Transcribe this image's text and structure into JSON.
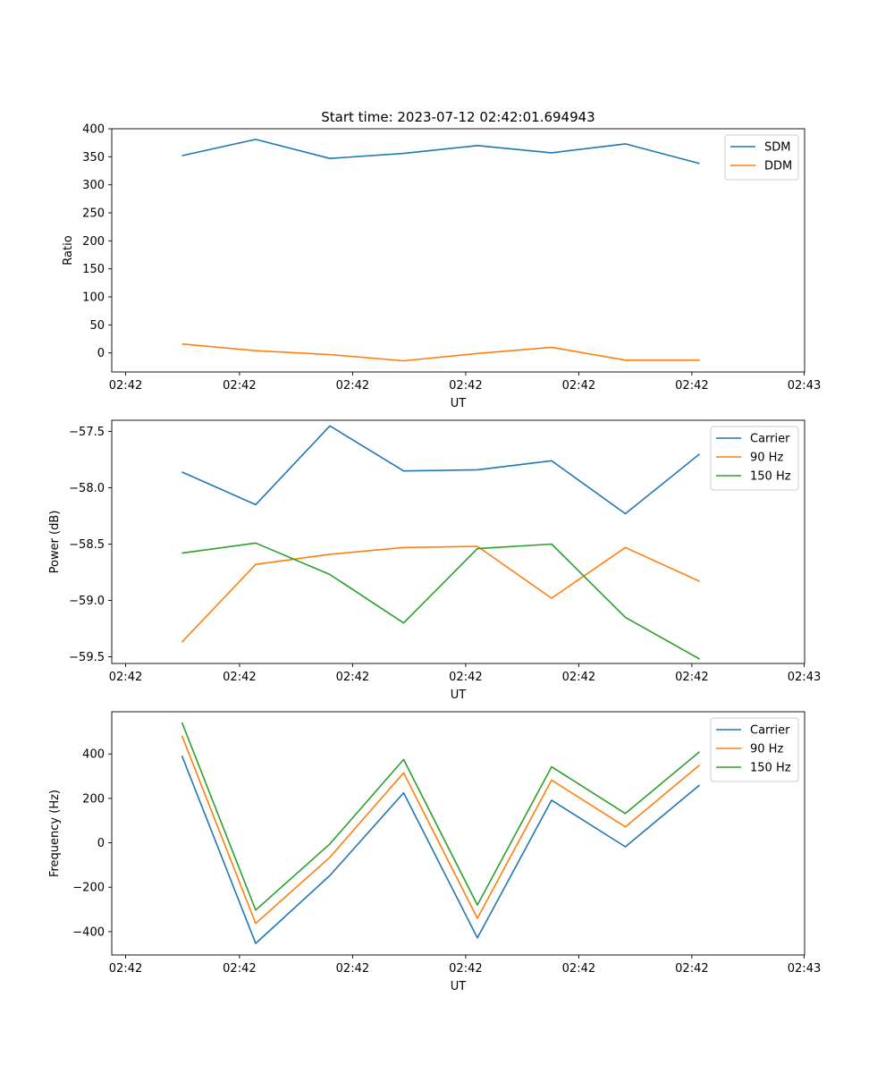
{
  "figure": {
    "title": "Start time: 2023-07-12 02:42:01.694943"
  },
  "chart_data": [
    {
      "type": "line",
      "title": "Start time: 2023-07-12 02:42:01.694943",
      "xlabel": "UT",
      "ylabel": "Ratio",
      "xticks": [
        "02:42",
        "02:42",
        "02:42",
        "02:42",
        "02:42",
        "02:42",
        "02:43"
      ],
      "yticks": [
        0,
        50,
        100,
        150,
        200,
        250,
        300,
        350,
        400
      ],
      "ylim": [
        -34,
        400
      ],
      "legend_position": "top-right",
      "grid": false,
      "series": [
        {
          "name": "SDM",
          "color": "#1f77b4",
          "values": [
            352,
            381,
            347,
            356,
            370,
            357,
            373,
            338
          ]
        },
        {
          "name": "DDM",
          "color": "#ff7f0e",
          "values": [
            16,
            4,
            -3,
            -14,
            -1,
            10,
            -13,
            -13
          ]
        }
      ]
    },
    {
      "type": "line",
      "title": "",
      "xlabel": "UT",
      "ylabel": "Power (dB)",
      "xticks": [
        "02:42",
        "02:42",
        "02:42",
        "02:42",
        "02:42",
        "02:42",
        "02:43"
      ],
      "yticks": [
        -59.5,
        -59.0,
        -58.5,
        -58.0,
        -57.5
      ],
      "ytick_labels": [
        "−59.5",
        "−59.0",
        "−58.5",
        "−58.0",
        "−57.5"
      ],
      "ylim": [
        -59.56,
        -57.4
      ],
      "legend_position": "top-right",
      "grid": false,
      "series": [
        {
          "name": "Carrier",
          "color": "#1f77b4",
          "values": [
            -57.86,
            -58.15,
            -57.45,
            -57.85,
            -57.84,
            -57.76,
            -58.23,
            -57.7
          ]
        },
        {
          "name": "90 Hz",
          "color": "#ff7f0e",
          "values": [
            -59.37,
            -58.68,
            -58.59,
            -58.53,
            -58.52,
            -58.98,
            -58.53,
            -58.83
          ]
        },
        {
          "name": "150 Hz",
          "color": "#2ca02c",
          "values": [
            -58.58,
            -58.49,
            -58.77,
            -59.2,
            -58.54,
            -58.5,
            -59.15,
            -59.52
          ]
        }
      ]
    },
    {
      "type": "line",
      "title": "",
      "xlabel": "UT",
      "ylabel": "Frequency (Hz)",
      "xticks": [
        "02:42",
        "02:42",
        "02:42",
        "02:42",
        "02:42",
        "02:42",
        "02:43"
      ],
      "yticks": [
        -400,
        -200,
        0,
        200,
        400
      ],
      "ytick_labels": [
        "−400",
        "−200",
        "0",
        "200",
        "400"
      ],
      "ylim": [
        -505,
        590
      ],
      "legend_position": "top-right",
      "grid": false,
      "series": [
        {
          "name": "Carrier",
          "color": "#1f77b4",
          "values": [
            392,
            -453,
            -147,
            225,
            -428,
            192,
            -18,
            260
          ]
        },
        {
          "name": "90 Hz",
          "color": "#ff7f0e",
          "values": [
            482,
            -363,
            -65,
            315,
            -340,
            282,
            72,
            350
          ]
        },
        {
          "name": "150 Hz",
          "color": "#2ca02c",
          "values": [
            542,
            -303,
            -5,
            375,
            -280,
            342,
            132,
            410
          ]
        }
      ]
    }
  ]
}
